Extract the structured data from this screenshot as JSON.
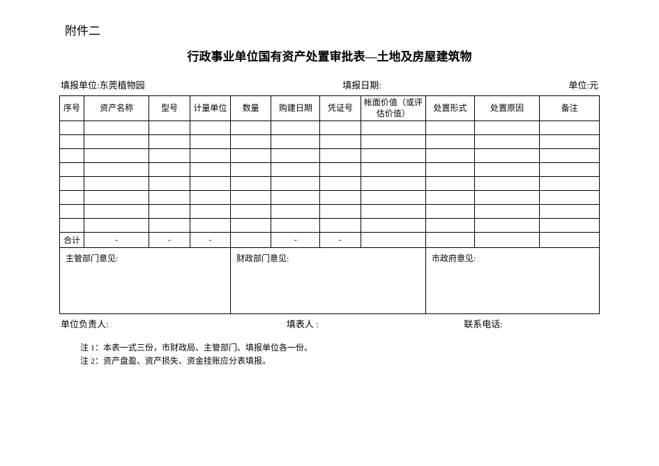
{
  "attachment_label": "附件二",
  "title": "行政事业单位国有资产处置审批表—土地及房屋建筑物",
  "info": {
    "filling_unit_label": "填报单位:",
    "filling_unit_value": "东莞植物园",
    "filling_date_label": "填报日期:",
    "currency_label": "单位:元"
  },
  "columns": {
    "seq": "序号",
    "name": "资产名称",
    "model": "型号",
    "unit": "计量单位",
    "qty": "数量",
    "date": "购建日期",
    "voucher": "凭证号",
    "value": "帐面价值（或评估价值）",
    "form": "处置形式",
    "reason": "处置原因",
    "remark": "备注"
  },
  "total_row": {
    "label": "合计",
    "name": "-",
    "model": "-",
    "unit": "-",
    "qty": "",
    "date": "-",
    "voucher": "-",
    "value": "",
    "form": "",
    "reason": "",
    "remark": ""
  },
  "opinions": {
    "dept": "主管部门意见:",
    "finance": "财政部门意见:",
    "gov": "市政府意见:"
  },
  "footer": {
    "unit_leader": "单位负责人:",
    "form_filler": "填表人 :",
    "contact": "联系电话:"
  },
  "notes": {
    "n1": "注 1：本表一式三份，市财政局、主管部门、填报单位各一份。",
    "n2": "注 2：资产盘盈、资产损失、资金挂账应分表填报。"
  },
  "styling": {
    "page_bg": "#ffffff",
    "text_color": "#000000",
    "border_color": "#000000",
    "title_fontsize": 17,
    "body_fontsize": 12,
    "data_rows_count": 8
  }
}
